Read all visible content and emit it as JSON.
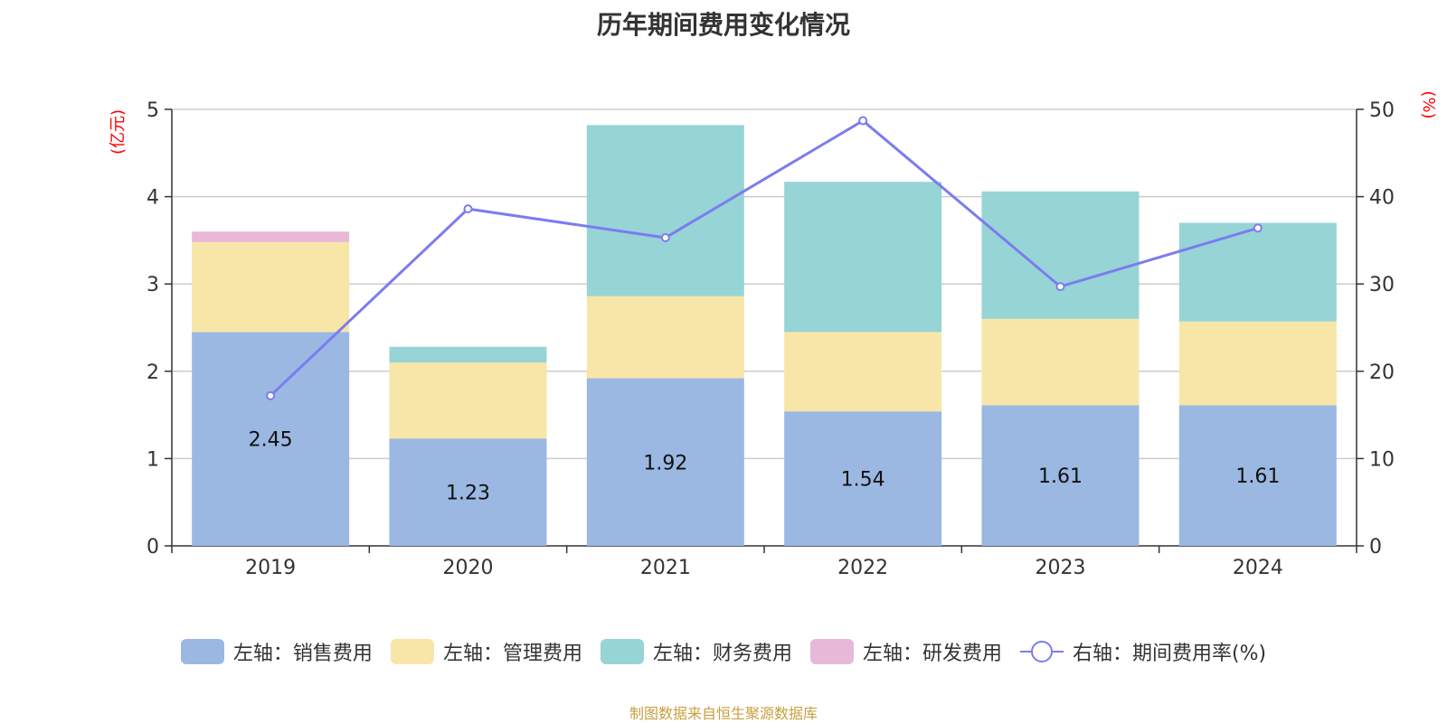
{
  "chart_data": {
    "type": "bar",
    "title": "历年期间费用变化情况",
    "categories": [
      "2019",
      "2020",
      "2021",
      "2022",
      "2023",
      "2024"
    ],
    "stacked": true,
    "left_axis": {
      "unit_label": "(亿元)",
      "range": [
        0,
        5
      ],
      "ticks": [
        "0",
        "1",
        "2",
        "3",
        "4",
        "5"
      ]
    },
    "right_axis": {
      "unit_label": "(%)",
      "range": [
        0,
        50
      ],
      "ticks": [
        "0",
        "10",
        "20",
        "30",
        "40",
        "50"
      ]
    },
    "series": [
      {
        "name": "左轴：销售费用",
        "axis": "left",
        "color": "#9bb8e2",
        "values": [
          2.45,
          1.23,
          1.92,
          1.54,
          1.61,
          1.61
        ],
        "labels": [
          "2.45",
          "1.23",
          "1.92",
          "1.54",
          "1.61",
          "1.61"
        ]
      },
      {
        "name": "左轴：管理费用",
        "axis": "left",
        "color": "#f7e6a8",
        "values": [
          1.03,
          0.87,
          0.94,
          0.91,
          0.99,
          0.96
        ]
      },
      {
        "name": "左轴：财务费用",
        "axis": "left",
        "color": "#97d4d5",
        "values": [
          0,
          0.18,
          1.96,
          1.72,
          1.46,
          1.13
        ]
      },
      {
        "name": "左轴：研发费用",
        "axis": "left",
        "color": "#e8b8d8",
        "values": [
          0.12,
          0,
          0,
          0,
          0,
          0
        ]
      },
      {
        "name": "右轴：期间费用率(%)",
        "axis": "right",
        "type": "line",
        "color": "#7b7cf0",
        "values": [
          17.2,
          38.6,
          35.3,
          48.7,
          29.7,
          36.4
        ]
      }
    ],
    "grid": true,
    "legend_position": "bottom"
  },
  "source": "制图数据来自恒生聚源数据库"
}
